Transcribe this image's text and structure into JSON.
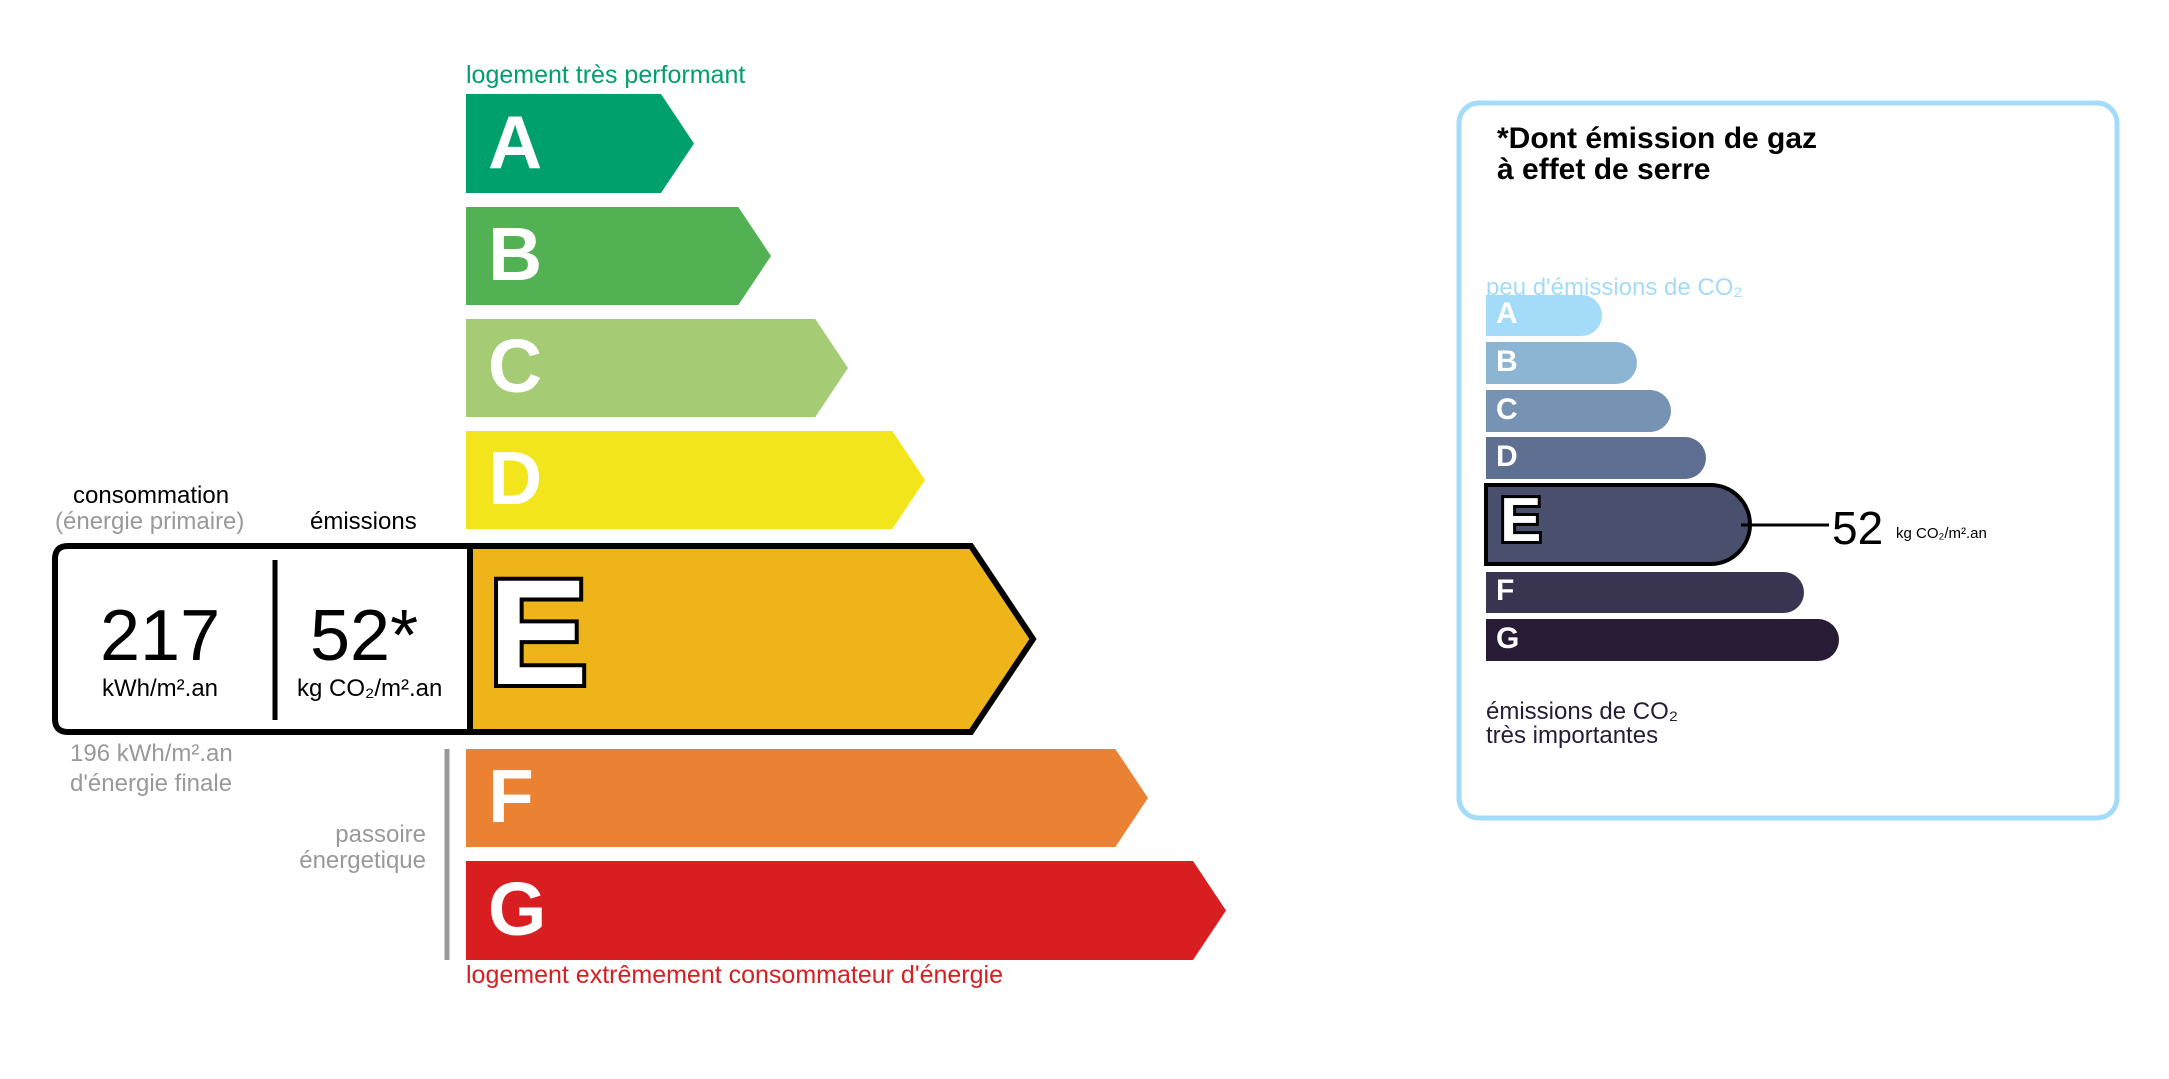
{
  "energy": {
    "top_label": "logement très performant",
    "bottom_label": "logement extrêmement consommateur d'énergie",
    "classes": [
      {
        "letter": "A",
        "color": "#00a06d"
      },
      {
        "letter": "B",
        "color": "#52b153"
      },
      {
        "letter": "C",
        "color": "#a5cc74"
      },
      {
        "letter": "D",
        "color": "#f2e51c"
      },
      {
        "letter": "E",
        "color": "#efb41a"
      },
      {
        "letter": "F",
        "color": "#eb8233"
      },
      {
        "letter": "G",
        "color": "#d81e21"
      }
    ],
    "current_class": "E",
    "consumption_label": "consommation",
    "consumption_sub": "(énergie primaire)",
    "emissions_label": "émissions",
    "consumption_value": "217",
    "consumption_unit": "kWh/m².an",
    "emissions_value": "52*",
    "emissions_unit": "kg CO₂/m².an",
    "final_energy_line1": "196 kWh/m².an",
    "final_energy_line2": "d'énergie finale",
    "passoire_line1": "passoire",
    "passoire_line2": "énergetique",
    "top_color": "#00a06d",
    "bottom_color": "#d81e21"
  },
  "ges": {
    "title_line1": "*Dont émission de gaz",
    "title_line2": "à effet de serre",
    "top_label": "peu d'émissions de CO₂",
    "bottom_line1": "émissions de CO₂",
    "bottom_line2": "très importantes",
    "classes": [
      {
        "letter": "A",
        "color": "#a4dbf8"
      },
      {
        "letter": "B",
        "color": "#8cb4d3"
      },
      {
        "letter": "C",
        "color": "#7793b3"
      },
      {
        "letter": "D",
        "color": "#5f6f91"
      },
      {
        "letter": "E",
        "color": "#4b4f6e"
      },
      {
        "letter": "F",
        "color": "#393551"
      },
      {
        "letter": "G",
        "color": "#281b35"
      }
    ],
    "current_class": "E",
    "value": "52",
    "unit": "kg CO₂/m².an",
    "border_color": "#a4dbf8"
  }
}
